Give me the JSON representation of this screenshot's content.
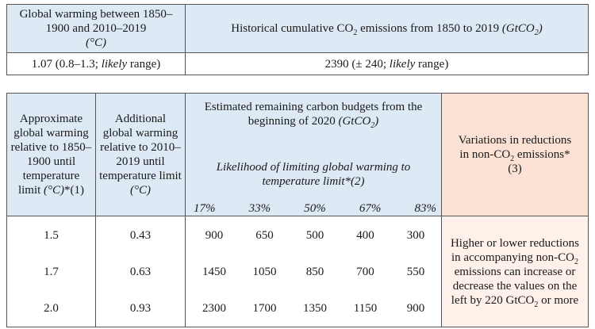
{
  "top_table": {
    "header_warming": "Global warming between 1850–1900 and 2010–2019",
    "header_warming_unit": "(°C)",
    "header_emissions": "Historical cumulative CO",
    "header_emissions_sub": "2",
    "header_emissions_rest": " emissions from 1850 to 2019 ",
    "header_emissions_unit": "(GtCO",
    "header_emissions_unit_sub": "2",
    "header_emissions_unit_end": ")",
    "warming_value": "1.07 (0.8–1.3; ",
    "warming_likely": "likely",
    "warming_range": " range)",
    "emissions_value": "2390 (± 240; ",
    "emissions_likely": "likely",
    "emissions_range": " range)"
  },
  "budget_table": {
    "col1_header": "Approximate global warming relative to 1850–1900 until temperature limit ",
    "col1_unit": "(°C)",
    "col1_note": "*(1)",
    "col2_header": "Additional global warming relative to 2010–2019 until temperature limit ",
    "col2_unit": "(°C)",
    "budget_header": "Estimated remaining carbon budgets from the beginning of 2020 ",
    "budget_unit": "(GtCO",
    "budget_unit_sub": "2",
    "budget_unit_end": ")",
    "likelihood_header": "Likelihood of limiting global warming to temperature limit*(2)",
    "likelihoods": [
      "17%",
      "33%",
      "50%",
      "67%",
      "83%"
    ],
    "variation_header": "Variations in reductions in non-CO",
    "variation_header_sub": "2",
    "variation_header_end": " emissions*(3)",
    "rows": [
      {
        "warming": "1.5",
        "additional": "0.43",
        "budgets": [
          "900",
          "650",
          "500",
          "400",
          "300"
        ]
      },
      {
        "warming": "1.7",
        "additional": "0.63",
        "budgets": [
          "1450",
          "1050",
          "850",
          "700",
          "550"
        ]
      },
      {
        "warming": "2.0",
        "additional": "0.93",
        "budgets": [
          "2300",
          "1700",
          "1350",
          "1150",
          "900"
        ]
      }
    ],
    "variation_text": "Higher or lower reductions in accompanying non-CO",
    "variation_text_sub": "2",
    "variation_text_mid": " emissions can increase or decrease the values on the left by 220 GtCO",
    "variation_text_sub2": "2",
    "variation_text_end": " or more"
  },
  "colors": {
    "header_blue": "#dde9f5",
    "header_peach": "#fbe2d4",
    "body_peach": "#fdf1ea"
  }
}
